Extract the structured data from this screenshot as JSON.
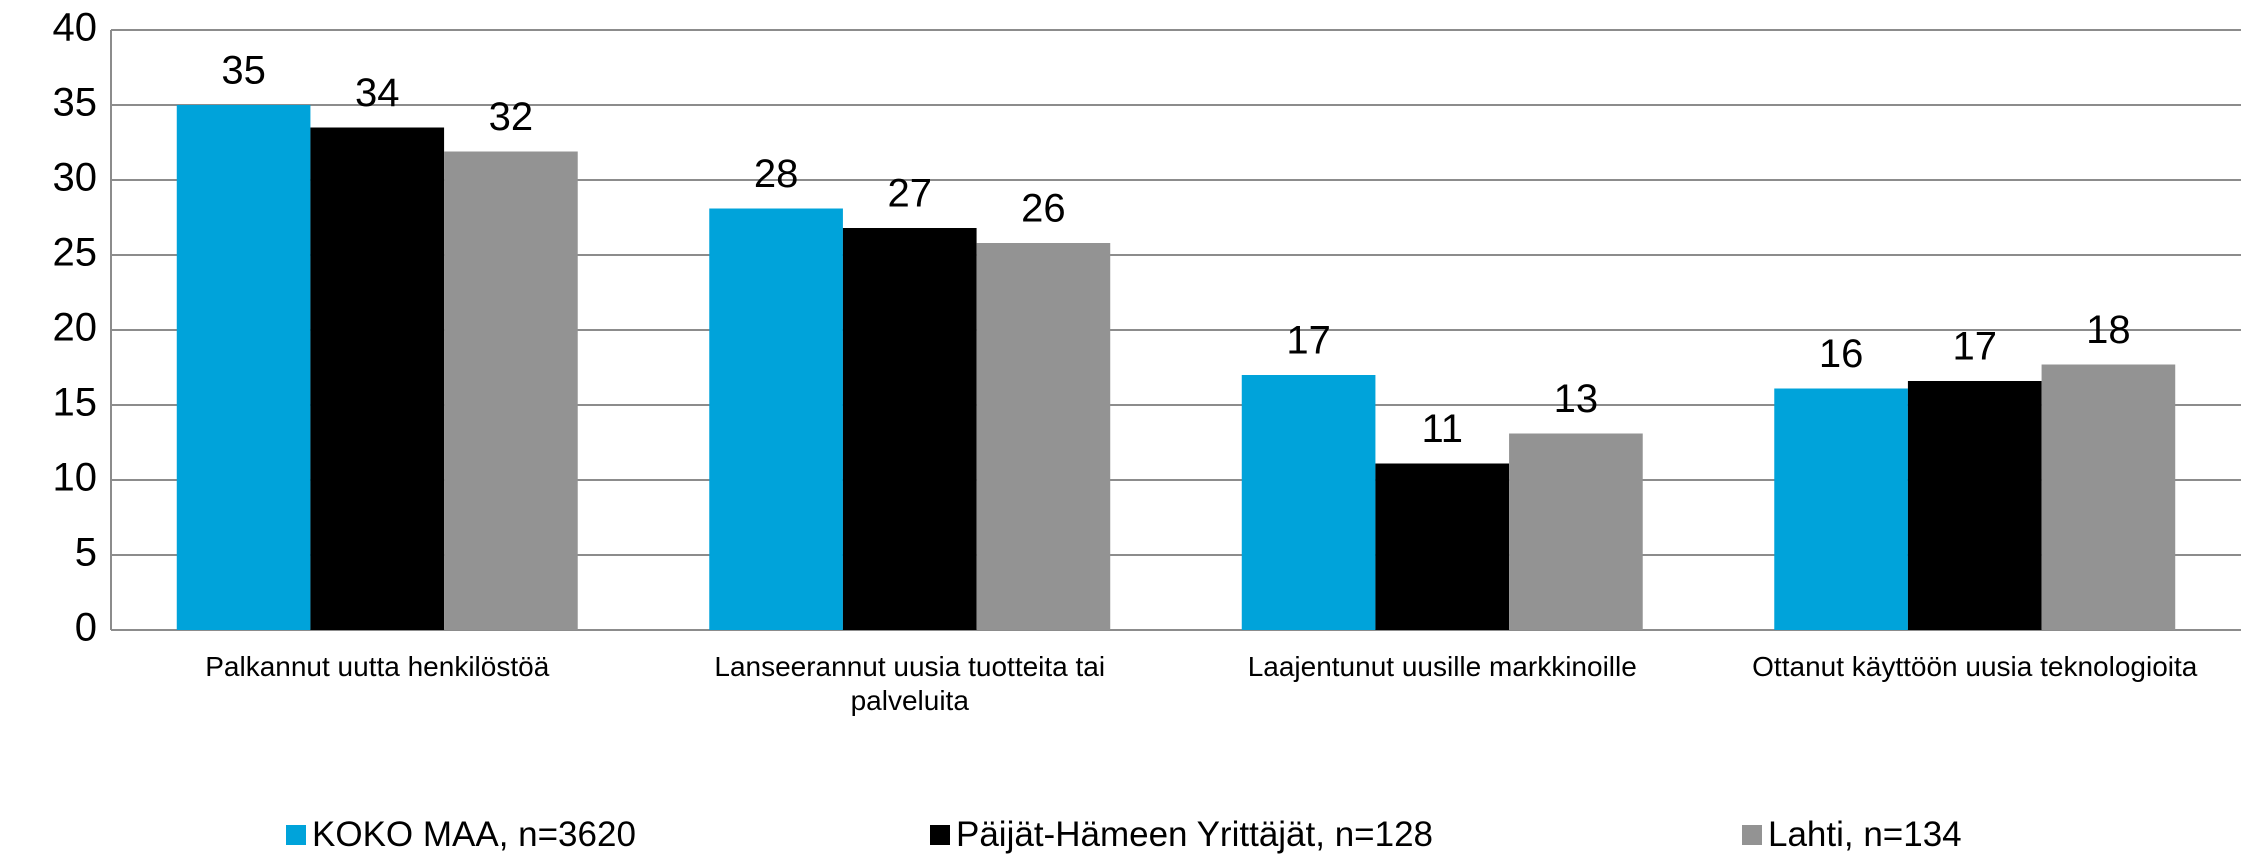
{
  "chart_data": {
    "type": "bar",
    "categories": [
      "Palkannut uutta henkilöstöä",
      "Lanseerannut uusia tuotteita tai palveluita",
      "Laajentunut uusille markkinoille",
      "Ottanut käyttöön uusia teknologioita"
    ],
    "series": [
      {
        "name": "KOKO MAA, n=3620",
        "color": "#00a3da",
        "values": [
          35,
          28.1,
          17,
          16.1
        ],
        "value_labels": [
          "35",
          "28",
          "17",
          "16"
        ]
      },
      {
        "name": "Päijät-Hämeen Yrittäjät, n=128",
        "color": "#000000",
        "values": [
          33.5,
          26.8,
          11.1,
          16.6
        ],
        "value_labels": [
          "34",
          "27",
          "11",
          "17"
        ]
      },
      {
        "name": "Lahti, n=134",
        "color": "#939393",
        "values": [
          31.9,
          25.8,
          13.1,
          17.7
        ],
        "value_labels": [
          "32",
          "26",
          "13",
          "18"
        ]
      }
    ],
    "ylim": [
      0,
      40
    ],
    "yticks": [
      0,
      5,
      10,
      15,
      20,
      25,
      30,
      35,
      40
    ],
    "grid": true,
    "legend": "bottom"
  }
}
